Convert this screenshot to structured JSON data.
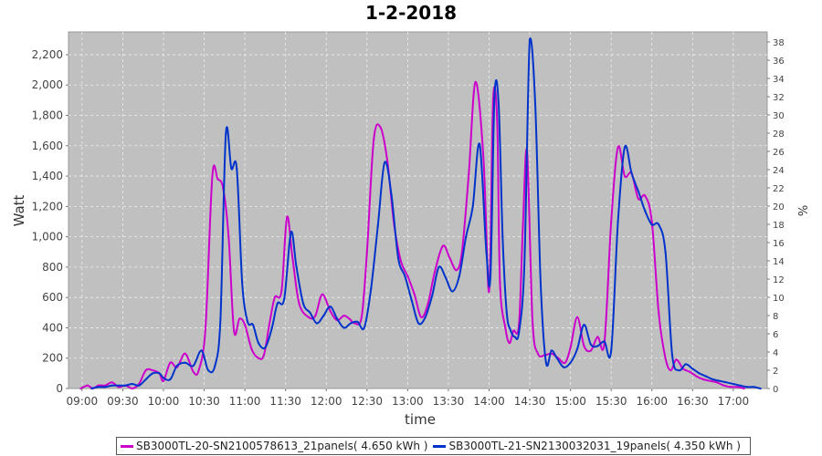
{
  "chart_data": {
    "type": "line",
    "title": "1-2-2018",
    "xlabel": "time",
    "ylabel": "Watt",
    "y2label": "%",
    "xlim": [
      "08:50",
      "17:25"
    ],
    "ylim": [
      0,
      2350
    ],
    "y2lim": [
      0,
      39.1
    ],
    "xticks": [
      "09:00",
      "09:30",
      "10:00",
      "10:30",
      "11:00",
      "11:30",
      "12:00",
      "12:30",
      "13:00",
      "13:30",
      "14:00",
      "14:30",
      "15:00",
      "15:30",
      "16:00",
      "16:30",
      "17:00"
    ],
    "yticks": [
      "0",
      "200",
      "400",
      "600",
      "800",
      "1,000",
      "1,200",
      "1,400",
      "1,600",
      "1,800",
      "2,000",
      "2,200"
    ],
    "y2ticks": [
      "0",
      "2",
      "4",
      "6",
      "8",
      "10",
      "12",
      "14",
      "16",
      "18",
      "20",
      "22",
      "24",
      "26",
      "28",
      "30",
      "32",
      "34",
      "36",
      "38"
    ],
    "grid": true,
    "legend_position": "bottom",
    "series": [
      {
        "name": "SB3000TL-20-SN2100578613_21panels( 4.650 kWh )",
        "color": "#cc00cc",
        "points": [
          [
            "08:59",
            0
          ],
          [
            "09:04",
            20
          ],
          [
            "09:08",
            0
          ],
          [
            "09:12",
            20
          ],
          [
            "09:17",
            20
          ],
          [
            "09:22",
            40
          ],
          [
            "09:27",
            10
          ],
          [
            "09:32",
            20
          ],
          [
            "09:37",
            0
          ],
          [
            "09:42",
            30
          ],
          [
            "09:47",
            120
          ],
          [
            "09:52",
            120
          ],
          [
            "09:57",
            100
          ],
          [
            "10:00",
            50
          ],
          [
            "10:05",
            170
          ],
          [
            "10:10",
            140
          ],
          [
            "10:16",
            230
          ],
          [
            "10:22",
            110
          ],
          [
            "10:26",
            120
          ],
          [
            "10:31",
            400
          ],
          [
            "10:36",
            1400
          ],
          [
            "10:40",
            1380
          ],
          [
            "10:44",
            1320
          ],
          [
            "10:48",
            1000
          ],
          [
            "10:52",
            380
          ],
          [
            "10:56",
            460
          ],
          [
            "11:00",
            420
          ],
          [
            "11:05",
            260
          ],
          [
            "11:10",
            200
          ],
          [
            "11:14",
            220
          ],
          [
            "11:18",
            420
          ],
          [
            "11:22",
            600
          ],
          [
            "11:27",
            640
          ],
          [
            "11:31",
            1130
          ],
          [
            "11:35",
            870
          ],
          [
            "11:40",
            560
          ],
          [
            "11:47",
            470
          ],
          [
            "11:52",
            480
          ],
          [
            "11:57",
            620
          ],
          [
            "12:03",
            510
          ],
          [
            "12:08",
            450
          ],
          [
            "12:13",
            480
          ],
          [
            "12:17",
            460
          ],
          [
            "12:21",
            430
          ],
          [
            "12:26",
            470
          ],
          [
            "12:30",
            900
          ],
          [
            "12:35",
            1640
          ],
          [
            "12:40",
            1720
          ],
          [
            "12:45",
            1500
          ],
          [
            "12:50",
            1080
          ],
          [
            "12:55",
            840
          ],
          [
            "13:00",
            740
          ],
          [
            "13:05",
            620
          ],
          [
            "13:10",
            470
          ],
          [
            "13:15",
            560
          ],
          [
            "13:20",
            770
          ],
          [
            "13:26",
            940
          ],
          [
            "13:31",
            860
          ],
          [
            "13:36",
            780
          ],
          [
            "13:40",
            900
          ],
          [
            "13:45",
            1410
          ],
          [
            "13:50",
            2020
          ],
          [
            "13:56",
            1500
          ],
          [
            "14:00",
            640
          ],
          [
            "14:03",
            1900
          ],
          [
            "14:06",
            1750
          ],
          [
            "14:08",
            700
          ],
          [
            "14:12",
            400
          ],
          [
            "14:15",
            300
          ],
          [
            "14:18",
            380
          ],
          [
            "14:22",
            420
          ],
          [
            "14:25",
            1080
          ],
          [
            "14:28",
            1560
          ],
          [
            "14:32",
            450
          ],
          [
            "14:36",
            230
          ],
          [
            "14:41",
            220
          ],
          [
            "14:46",
            230
          ],
          [
            "14:51",
            200
          ],
          [
            "14:56",
            170
          ],
          [
            "15:00",
            270
          ],
          [
            "15:05",
            470
          ],
          [
            "15:10",
            280
          ],
          [
            "15:15",
            250
          ],
          [
            "15:20",
            340
          ],
          [
            "15:25",
            300
          ],
          [
            "15:30",
            1100
          ],
          [
            "15:35",
            1590
          ],
          [
            "15:40",
            1400
          ],
          [
            "15:45",
            1420
          ],
          [
            "15:50",
            1250
          ],
          [
            "15:55",
            1270
          ],
          [
            "16:00",
            1100
          ],
          [
            "16:05",
            500
          ],
          [
            "16:10",
            200
          ],
          [
            "16:14",
            120
          ],
          [
            "16:18",
            190
          ],
          [
            "16:23",
            130
          ],
          [
            "16:28",
            110
          ],
          [
            "16:33",
            80
          ],
          [
            "16:38",
            60
          ],
          [
            "16:43",
            50
          ],
          [
            "16:48",
            40
          ],
          [
            "16:53",
            20
          ],
          [
            "16:58",
            10
          ],
          [
            "17:03",
            10
          ],
          [
            "17:08",
            0
          ]
        ]
      },
      {
        "name": "SB3000TL-21-SN2130032031_19panels( 4.350 kWh )",
        "color": "#0033cc",
        "points": [
          [
            "09:07",
            0
          ],
          [
            "09:12",
            10
          ],
          [
            "09:17",
            10
          ],
          [
            "09:22",
            20
          ],
          [
            "09:27",
            20
          ],
          [
            "09:32",
            20
          ],
          [
            "09:37",
            30
          ],
          [
            "09:42",
            20
          ],
          [
            "09:47",
            60
          ],
          [
            "09:52",
            100
          ],
          [
            "09:57",
            100
          ],
          [
            "10:00",
            70
          ],
          [
            "10:05",
            60
          ],
          [
            "10:10",
            150
          ],
          [
            "10:16",
            170
          ],
          [
            "10:22",
            150
          ],
          [
            "10:28",
            250
          ],
          [
            "10:33",
            120
          ],
          [
            "10:38",
            150
          ],
          [
            "10:42",
            460
          ],
          [
            "10:46",
            1680
          ],
          [
            "10:50",
            1450
          ],
          [
            "10:54",
            1450
          ],
          [
            "10:58",
            700
          ],
          [
            "11:02",
            440
          ],
          [
            "11:06",
            420
          ],
          [
            "11:10",
            300
          ],
          [
            "11:15",
            270
          ],
          [
            "11:20",
            400
          ],
          [
            "11:24",
            560
          ],
          [
            "11:29",
            590
          ],
          [
            "11:34",
            1030
          ],
          [
            "11:38",
            800
          ],
          [
            "11:43",
            560
          ],
          [
            "11:48",
            500
          ],
          [
            "11:53",
            430
          ],
          [
            "11:58",
            480
          ],
          [
            "12:03",
            540
          ],
          [
            "12:08",
            460
          ],
          [
            "12:13",
            400
          ],
          [
            "12:18",
            430
          ],
          [
            "12:23",
            440
          ],
          [
            "12:28",
            400
          ],
          [
            "12:33",
            660
          ],
          [
            "12:38",
            1070
          ],
          [
            "12:43",
            1490
          ],
          [
            "12:48",
            1280
          ],
          [
            "12:53",
            860
          ],
          [
            "12:58",
            740
          ],
          [
            "13:03",
            580
          ],
          [
            "13:08",
            430
          ],
          [
            "13:13",
            470
          ],
          [
            "13:18",
            610
          ],
          [
            "13:23",
            800
          ],
          [
            "13:28",
            730
          ],
          [
            "13:33",
            640
          ],
          [
            "13:38",
            740
          ],
          [
            "13:43",
            1000
          ],
          [
            "13:48",
            1200
          ],
          [
            "13:53",
            1610
          ],
          [
            "13:58",
            900
          ],
          [
            "14:01",
            740
          ],
          [
            "14:04",
            1920
          ],
          [
            "14:07",
            1880
          ],
          [
            "14:10",
            1000
          ],
          [
            "14:13",
            500
          ],
          [
            "14:16",
            380
          ],
          [
            "14:19",
            340
          ],
          [
            "14:22",
            370
          ],
          [
            "14:26",
            810
          ],
          [
            "14:30",
            2300
          ],
          [
            "14:34",
            1880
          ],
          [
            "14:38",
            700
          ],
          [
            "14:42",
            170
          ],
          [
            "14:46",
            250
          ],
          [
            "14:50",
            200
          ],
          [
            "14:55",
            140
          ],
          [
            "15:00",
            170
          ],
          [
            "15:05",
            260
          ],
          [
            "15:10",
            420
          ],
          [
            "15:15",
            290
          ],
          [
            "15:20",
            280
          ],
          [
            "15:25",
            310
          ],
          [
            "15:30",
            250
          ],
          [
            "15:35",
            1100
          ],
          [
            "15:40",
            1590
          ],
          [
            "15:45",
            1420
          ],
          [
            "15:50",
            1300
          ],
          [
            "15:55",
            1170
          ],
          [
            "16:00",
            1080
          ],
          [
            "16:05",
            1080
          ],
          [
            "16:10",
            900
          ],
          [
            "16:15",
            220
          ],
          [
            "16:20",
            120
          ],
          [
            "16:25",
            160
          ],
          [
            "16:30",
            130
          ],
          [
            "16:35",
            100
          ],
          [
            "16:40",
            80
          ],
          [
            "16:45",
            60
          ],
          [
            "16:50",
            50
          ],
          [
            "16:55",
            40
          ],
          [
            "17:00",
            30
          ],
          [
            "17:05",
            20
          ],
          [
            "17:10",
            10
          ],
          [
            "17:15",
            10
          ],
          [
            "17:20",
            0
          ]
        ]
      }
    ]
  }
}
